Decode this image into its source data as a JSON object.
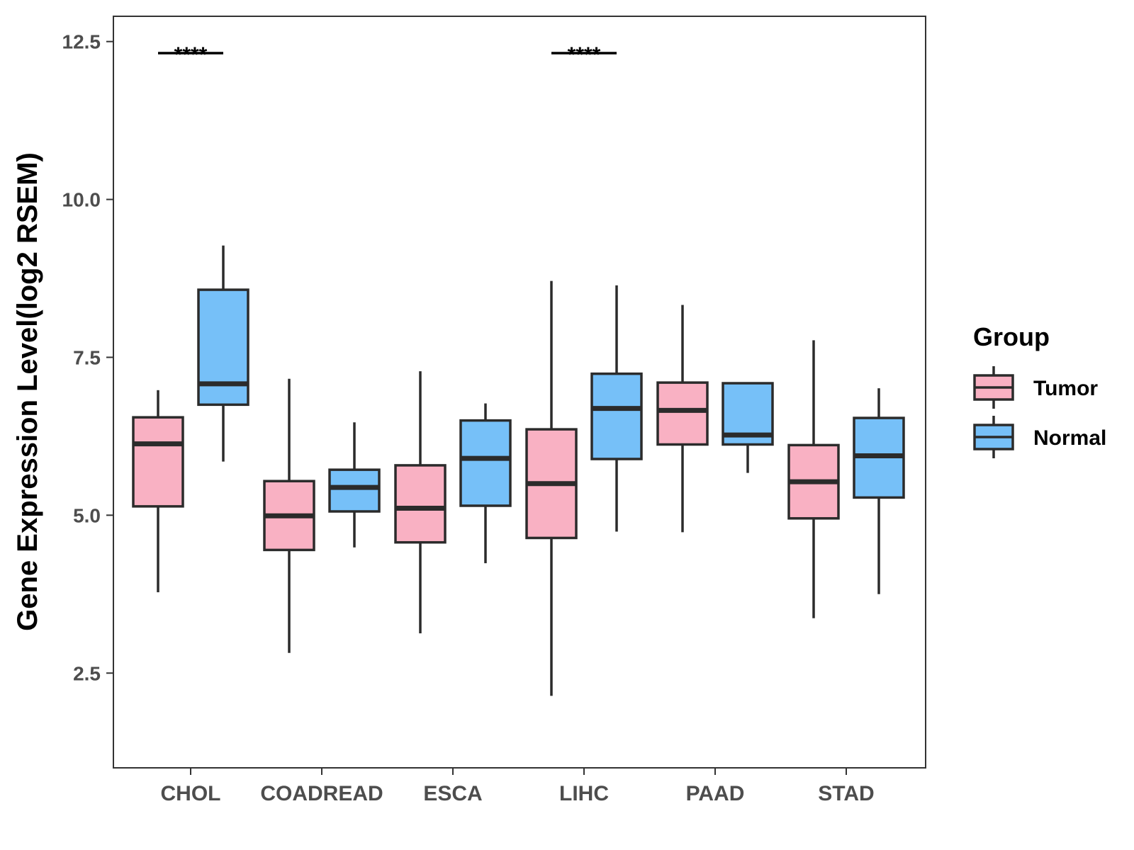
{
  "chart_data": {
    "type": "boxplot",
    "ylabel": "Gene Expression Level(log2 RSEM)",
    "xlabel": "",
    "ylim": [
      1.0,
      12.9
    ],
    "yticks": [
      2.5,
      5.0,
      7.5,
      10.0,
      12.5
    ],
    "ytick_labels": [
      "2.5",
      "5.0",
      "7.5",
      "10.0",
      "12.5"
    ],
    "categories": [
      "CHOL",
      "COADREAD",
      "ESCA",
      "LIHC",
      "PAAD",
      "STAD"
    ],
    "legend": {
      "title": "Group",
      "position": "right",
      "entries": [
        {
          "name": "Tumor",
          "color": "#f9b1c3"
        },
        {
          "name": "Normal",
          "color": "#76c0f8"
        }
      ]
    },
    "series": [
      {
        "name": "Tumor",
        "color": "#f9b1c3",
        "boxes": [
          {
            "min": 3.78,
            "q1": 5.14,
            "median": 6.13,
            "q3": 6.55,
            "max": 6.98
          },
          {
            "min": 2.82,
            "q1": 4.45,
            "median": 4.99,
            "q3": 5.54,
            "max": 7.16
          },
          {
            "min": 3.13,
            "q1": 4.57,
            "median": 5.11,
            "q3": 5.79,
            "max": 7.28
          },
          {
            "min": 2.14,
            "q1": 4.64,
            "median": 5.5,
            "q3": 6.36,
            "max": 8.71
          },
          {
            "min": 4.73,
            "q1": 6.12,
            "median": 6.66,
            "q3": 7.1,
            "max": 8.33
          },
          {
            "min": 3.37,
            "q1": 4.95,
            "median": 5.53,
            "q3": 6.11,
            "max": 7.77
          }
        ]
      },
      {
        "name": "Normal",
        "color": "#76c0f8",
        "boxes": [
          {
            "min": 5.85,
            "q1": 6.75,
            "median": 7.08,
            "q3": 8.57,
            "max": 9.27
          },
          {
            "min": 4.49,
            "q1": 5.06,
            "median": 5.44,
            "q3": 5.72,
            "max": 6.47
          },
          {
            "min": 4.24,
            "q1": 5.15,
            "median": 5.9,
            "q3": 6.5,
            "max": 6.77
          },
          {
            "min": 4.74,
            "q1": 5.89,
            "median": 6.69,
            "q3": 7.24,
            "max": 8.64
          },
          {
            "min": 5.67,
            "q1": 6.12,
            "median": 6.27,
            "q3": 7.09,
            "max": 7.09
          },
          {
            "min": 3.75,
            "q1": 5.28,
            "median": 5.94,
            "q3": 6.54,
            "max": 7.01
          }
        ]
      }
    ],
    "annotations": [
      {
        "category": "CHOL",
        "text": "****"
      },
      {
        "category": "LIHC",
        "text": "****"
      }
    ]
  }
}
